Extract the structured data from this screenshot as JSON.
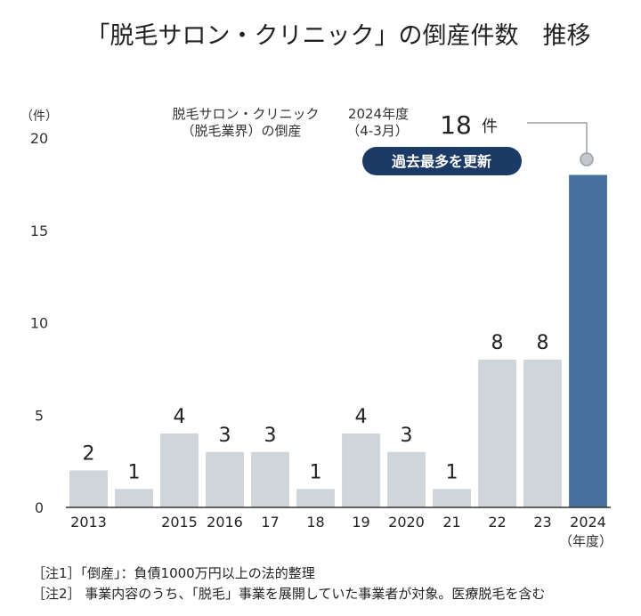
{
  "chart_data": {
    "type": "bar",
    "title": "「脱毛サロン・クリニック」の倒産件数　推移",
    "ylabel": "（件）",
    "xlabel": "（年度）",
    "ylim": [
      0,
      20
    ],
    "yticks": [
      0,
      5,
      10,
      15,
      20
    ],
    "categories": [
      "2013",
      "",
      "2015",
      "2016",
      "17",
      "18",
      "19",
      "2020",
      "21",
      "22",
      "23",
      "2024"
    ],
    "values": [
      2,
      1,
      4,
      3,
      3,
      1,
      4,
      3,
      1,
      8,
      8,
      18
    ],
    "highlight_index": 11,
    "colors": {
      "bar": "#d0d5da",
      "highlight": "#46719c",
      "badge": "#1c3a66",
      "leader": "#9aa0a6",
      "axis": "#333333"
    },
    "annotation": {
      "series_line1": "脱毛サロン・クリニック",
      "series_line2": "（脱毛業界）の倒産",
      "period_line1": "2024年度",
      "period_line2": "（4-3月）",
      "value": "18",
      "unit": "件",
      "badge": "過去最多を更新"
    },
    "notes": [
      "［注1］「倒産」：負債1000万円以上の法的整理",
      "［注2］ 事業内容のうち、「脱毛」事業を展開していた事業者が対象。医療脱毛を含む"
    ]
  }
}
